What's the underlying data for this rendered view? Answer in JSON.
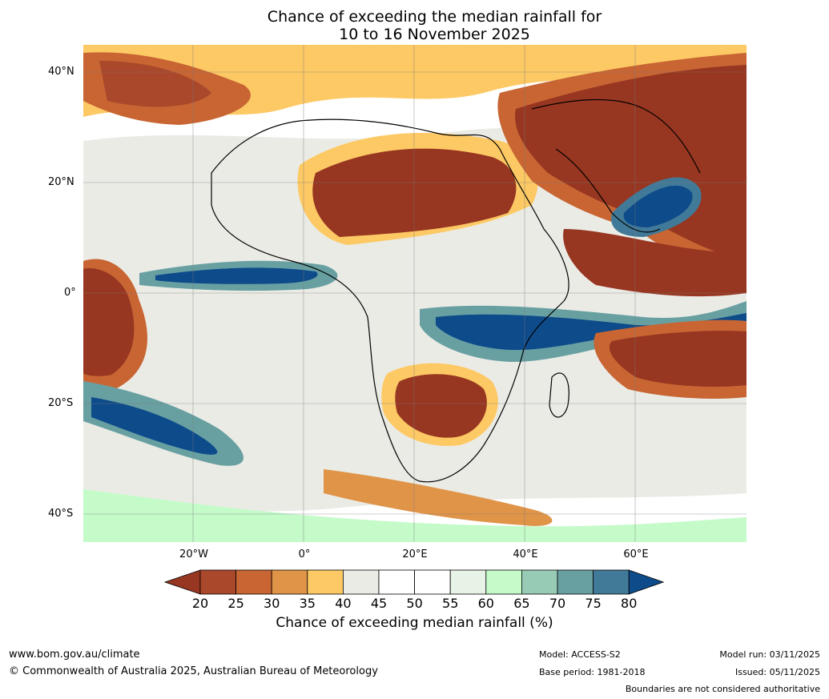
{
  "title": {
    "line1": "Chance of exceeding the median rainfall for",
    "line2": "10 to 16 November 2025"
  },
  "map": {
    "lat_labels": [
      "40°N",
      "20°N",
      "0°",
      "20°S",
      "40°S"
    ],
    "lon_labels": [
      "20°W",
      "0°",
      "20°E",
      "40°E",
      "60°E"
    ]
  },
  "colorbar": {
    "ticks": [
      "20",
      "25",
      "30",
      "35",
      "40",
      "45",
      "50",
      "55",
      "60",
      "65",
      "70",
      "75",
      "80"
    ],
    "colors": [
      "#973621",
      "#a9482b",
      "#c86533",
      "#df9448",
      "#fdc964",
      "#ebebe6",
      "#ffffff",
      "#ffffff",
      "#e6f3e6",
      "#c4fbc9",
      "#98cbb6",
      "#68a0a2",
      "#417a98",
      "#0e4b8a"
    ],
    "label": "Chance of exceeding median rainfall (%)"
  },
  "footer": {
    "website": "www.bom.gov.au/climate",
    "copyright": "© Commonwealth of Australia 2025, Australian Bureau of Meteorology",
    "model": "Model: ACCESS-S2",
    "base_period": "Base period: 1981-2018",
    "model_run": "Model run: 03/11/2025",
    "issued": "Issued: 05/11/2025",
    "disclaimer": "Boundaries are not considered authoritative"
  }
}
